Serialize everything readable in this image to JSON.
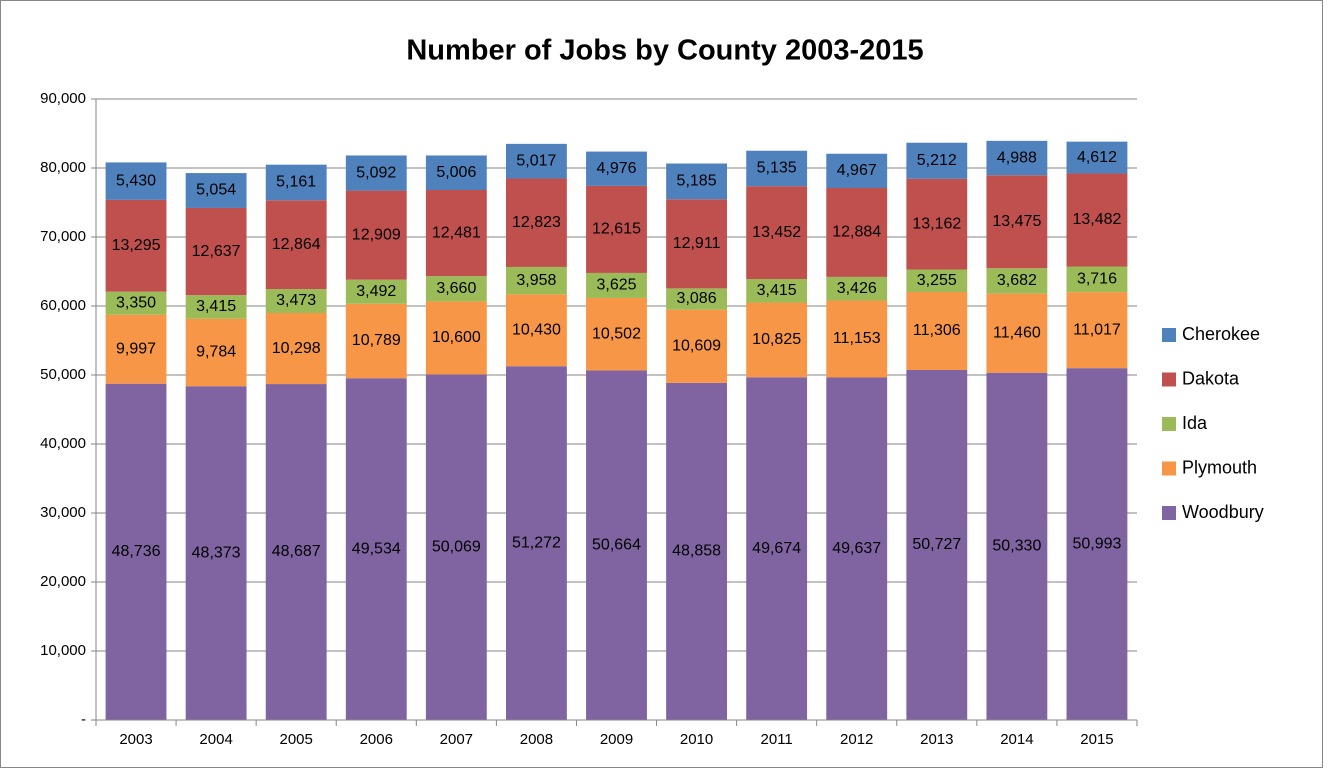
{
  "chart_data": {
    "type": "stacked_bar",
    "title": "Number of Jobs by County 2003-2015",
    "categories": [
      "2003",
      "2004",
      "2005",
      "2006",
      "2007",
      "2008",
      "2009",
      "2010",
      "2011",
      "2012",
      "2013",
      "2014",
      "2015"
    ],
    "series": [
      {
        "name": "Woodbury",
        "color": "#8064a2",
        "values": [
          48736,
          48373,
          48687,
          49534,
          50069,
          51272,
          50664,
          48858,
          49674,
          49637,
          50727,
          50330,
          50993
        ],
        "value_labels": [
          "48,736",
          "48,373",
          "48,687",
          "49,534",
          "50,069",
          "51,272",
          "50,664",
          "48,858",
          "49,674",
          "49,637",
          "50,727",
          "50,330",
          "50,993"
        ]
      },
      {
        "name": "Plymouth",
        "color": "#f79646",
        "values": [
          9997,
          9784,
          10298,
          10789,
          10600,
          10430,
          10502,
          10609,
          10825,
          11153,
          11306,
          11460,
          11017
        ],
        "value_labels": [
          "9,997",
          "9,784",
          "10,298",
          "10,789",
          "10,600",
          "10,430",
          "10,502",
          "10,609",
          "10,825",
          "11,153",
          "11,306",
          "11,460",
          "11,017"
        ]
      },
      {
        "name": "Ida",
        "color": "#9bbb59",
        "values": [
          3350,
          3415,
          3473,
          3492,
          3660,
          3958,
          3625,
          3086,
          3415,
          3426,
          3255,
          3682,
          3716
        ],
        "value_labels": [
          "3,350",
          "3,415",
          "3,473",
          "3,492",
          "3,660",
          "3,958",
          "3,625",
          "3,086",
          "3,415",
          "3,426",
          "3,255",
          "3,682",
          "3,716"
        ]
      },
      {
        "name": "Dakota",
        "color": "#c0504d",
        "values": [
          13295,
          12637,
          12864,
          12909,
          12481,
          12823,
          12615,
          12911,
          13452,
          12884,
          13162,
          13475,
          13482
        ],
        "value_labels": [
          "13,295",
          "12,637",
          "12,864",
          "12,909",
          "12,481",
          "12,823",
          "12,615",
          "12,911",
          "13,452",
          "12,884",
          "13,162",
          "13,475",
          "13,482"
        ]
      },
      {
        "name": "Cherokee",
        "color": "#4f81bd",
        "values": [
          5430,
          5054,
          5161,
          5092,
          5006,
          5017,
          4976,
          5185,
          5135,
          4967,
          5212,
          4988,
          4612
        ],
        "value_labels": [
          "5,430",
          "5,054",
          "5,161",
          "5,092",
          "5,006",
          "5,017",
          "4,976",
          "5,185",
          "5,135",
          "4,967",
          "5,212",
          "4,988",
          "4,612"
        ]
      }
    ],
    "ylim": [
      0,
      90000
    ],
    "yticks": [
      {
        "value": 0,
        "label": "-"
      },
      {
        "value": 10000,
        "label": "10,000"
      },
      {
        "value": 20000,
        "label": "20,000"
      },
      {
        "value": 30000,
        "label": "30,000"
      },
      {
        "value": 40000,
        "label": "40,000"
      },
      {
        "value": 50000,
        "label": "50,000"
      },
      {
        "value": 60000,
        "label": "60,000"
      },
      {
        "value": 70000,
        "label": "70,000"
      },
      {
        "value": 80000,
        "label": "80,000"
      },
      {
        "value": 90000,
        "label": "90,000"
      }
    ],
    "grid": true,
    "legend": "right"
  }
}
